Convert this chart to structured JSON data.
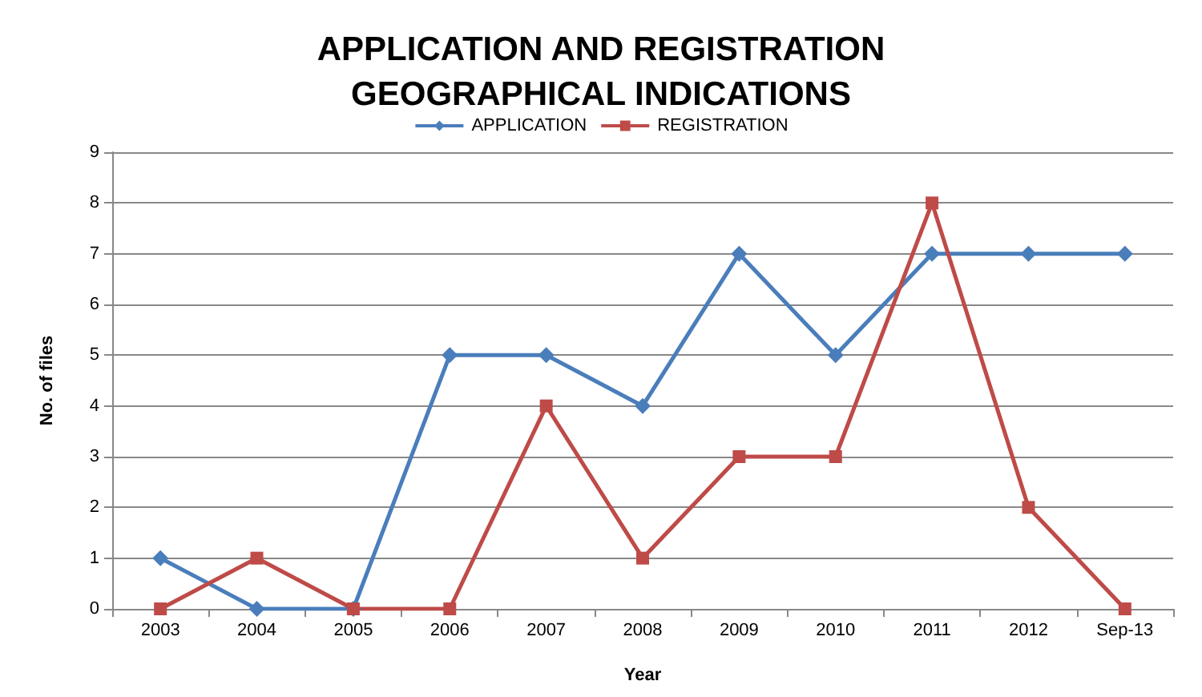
{
  "chart_data": {
    "type": "line",
    "title": "APPLICATION AND REGISTRATION\nGEOGRAPHICAL INDICATIONS",
    "xlabel": "Year",
    "ylabel": "No. of files",
    "categories": [
      "2003",
      "2004",
      "2005",
      "2006",
      "2007",
      "2008",
      "2009",
      "2010",
      "2011",
      "2012",
      "Sep-13"
    ],
    "series": [
      {
        "name": "APPLICATION",
        "color": "#4a7ebb",
        "marker": "diamond",
        "values": [
          1,
          0,
          0,
          5,
          5,
          4,
          7,
          5,
          7,
          7,
          7
        ]
      },
      {
        "name": "REGISTRATION",
        "color": "#be4b48",
        "marker": "square",
        "values": [
          0,
          1,
          0,
          0,
          4,
          1,
          3,
          3,
          8,
          2,
          0
        ]
      }
    ],
    "ylim": [
      0,
      9
    ],
    "yticks": [
      0,
      1,
      2,
      3,
      4,
      5,
      6,
      7,
      8,
      9
    ],
    "grid": "y",
    "legend": "top",
    "line_style": "solid"
  }
}
